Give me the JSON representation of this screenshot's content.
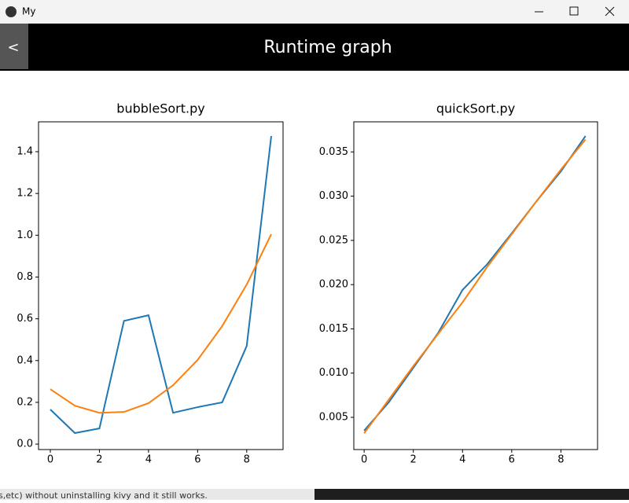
{
  "window": {
    "title": "My"
  },
  "header": {
    "back_button": "<",
    "title": "Runtime graph"
  },
  "background_text": "s,etc) without uninstalling kivy and it still works.",
  "chart_data": [
    {
      "type": "line",
      "title": "bubbleSort.py",
      "x": [
        0,
        1,
        2,
        3,
        4,
        5,
        6,
        7,
        8,
        9
      ],
      "series": [
        {
          "color": "#1f77b4",
          "values": [
            0.166,
            0.053,
            0.075,
            0.59,
            0.617,
            0.15,
            0.177,
            0.2,
            0.47,
            1.475
          ]
        },
        {
          "color": "#ff7f0e",
          "values": [
            0.263,
            0.184,
            0.15,
            0.154,
            0.196,
            0.282,
            0.403,
            0.565,
            0.764,
            1.005
          ]
        }
      ],
      "xlim": [
        -0.48,
        9.48
      ],
      "xticks": [
        0,
        2,
        4,
        6,
        8
      ],
      "ylim": [
        -0.026,
        1.543
      ],
      "yticks": [
        {
          "value": 0,
          "label": "0.0"
        },
        0.2,
        0.4,
        0.6,
        0.8,
        {
          "value": 1,
          "label": "1.0"
        },
        1.2,
        1.4
      ]
    },
    {
      "type": "line",
      "title": "quickSort.py",
      "x": [
        0,
        1,
        2,
        3,
        4,
        5,
        6,
        7,
        8,
        9
      ],
      "series": [
        {
          "color": "#1f77b4",
          "values": [
            0.0035,
            0.0067,
            0.0106,
            0.0145,
            0.0194,
            0.0223,
            0.0258,
            0.0294,
            0.0328,
            0.0368
          ]
        },
        {
          "color": "#ff7f0e",
          "values": [
            0.0032,
            0.007,
            0.0108,
            0.0144,
            0.018,
            0.022,
            0.0257,
            0.0294,
            0.033,
            0.0364
          ]
        }
      ],
      "xlim": [
        -0.42,
        9.49
      ],
      "xticks": [
        0,
        2,
        4,
        6,
        8
      ],
      "ylim": [
        0.00136,
        0.0384
      ],
      "yticks": [
        0.005,
        {
          "value": 0.01,
          "label": "0.010"
        },
        0.015,
        {
          "value": 0.02,
          "label": "0.020"
        },
        0.025,
        {
          "value": 0.03,
          "label": "0.030"
        },
        0.035
      ]
    }
  ]
}
